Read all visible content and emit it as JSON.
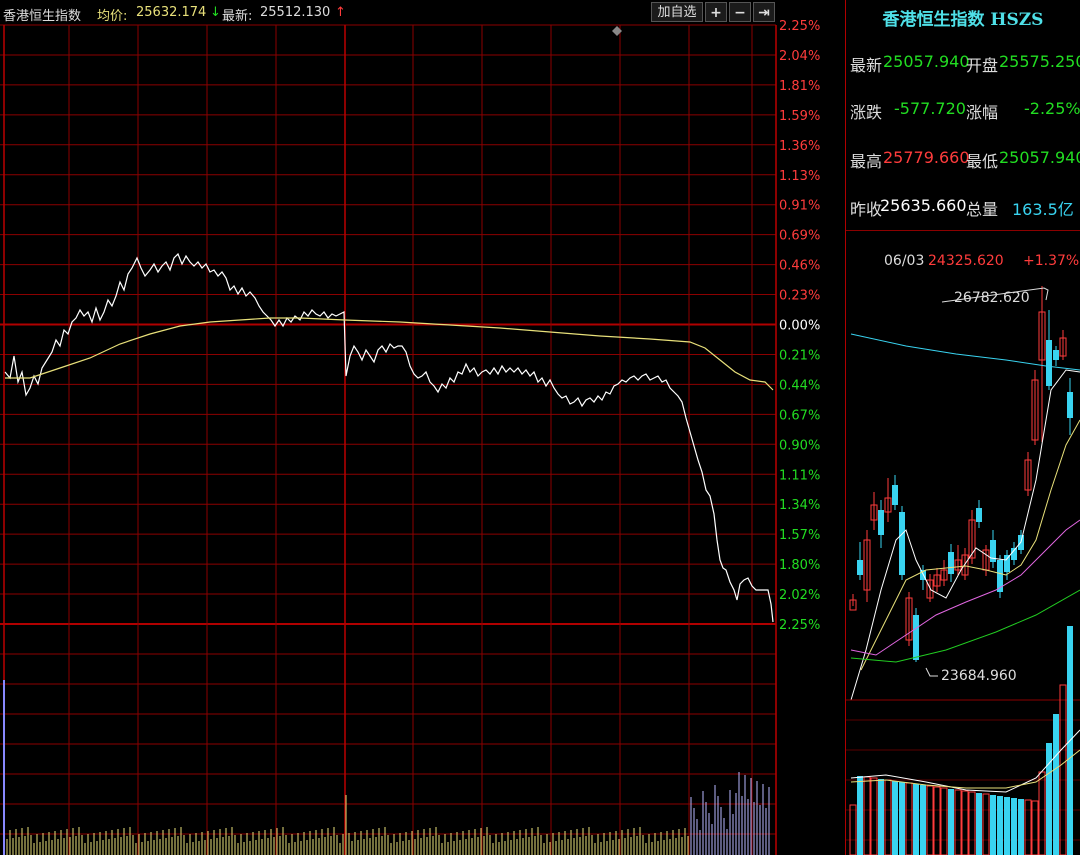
{
  "header": {
    "title": "香港恒生指数",
    "avg_label": "均价:",
    "avg_value": "25632.174",
    "avg_arrow": "↓",
    "latest_label": "最新:",
    "latest_value": "25512.130",
    "latest_arrow": "↑",
    "add_watch_label": "加自选",
    "plus_label": "+",
    "minus_label": "−",
    "close_label": "⇥"
  },
  "colors": {
    "up": "#ff3c3c",
    "down": "#22dd22",
    "grid": "#8b0000",
    "price_line": "#ffffff",
    "avg_line": "#e8e07a",
    "accent": "#4fe0e8"
  },
  "right_axis_labels": [
    {
      "text": "2.25%",
      "dir": "up"
    },
    {
      "text": "2.04%",
      "dir": "up"
    },
    {
      "text": "1.81%",
      "dir": "up"
    },
    {
      "text": "1.59%",
      "dir": "up"
    },
    {
      "text": "1.36%",
      "dir": "up"
    },
    {
      "text": "1.13%",
      "dir": "up"
    },
    {
      "text": "0.91%",
      "dir": "up"
    },
    {
      "text": "0.69%",
      "dir": "up"
    },
    {
      "text": "0.46%",
      "dir": "up"
    },
    {
      "text": "0.23%",
      "dir": "up"
    },
    {
      "text": "0.00%",
      "dir": "flat"
    },
    {
      "text": "0.21%",
      "dir": "down"
    },
    {
      "text": "0.44%",
      "dir": "down"
    },
    {
      "text": "0.67%",
      "dir": "down"
    },
    {
      "text": "0.90%",
      "dir": "down"
    },
    {
      "text": "1.11%",
      "dir": "down"
    },
    {
      "text": "1.34%",
      "dir": "down"
    },
    {
      "text": "1.57%",
      "dir": "down"
    },
    {
      "text": "1.80%",
      "dir": "down"
    },
    {
      "text": "2.02%",
      "dir": "down"
    },
    {
      "text": "2.25%",
      "dir": "down"
    }
  ],
  "side_panel": {
    "title": "香港恒生指数 HSZS",
    "rows": [
      {
        "l1": "最新",
        "v1": "25057.940",
        "c1": "g",
        "l2": "开盘",
        "v2": "25575.250",
        "c2": "g"
      },
      {
        "l1": "涨跌",
        "v1": "-577.720",
        "c1": "g",
        "l2": "涨幅",
        "v2": "-2.25%",
        "c2": "g"
      },
      {
        "l1": "最高",
        "v1": "25779.660",
        "c1": "r",
        "l2": "最低",
        "v2": "25057.940",
        "c2": "g"
      },
      {
        "l1": "昨收",
        "v1": "25635.660",
        "c1": "w",
        "l2": "总量",
        "v2": "163.5亿",
        "c2": "c"
      }
    ],
    "kline_header": {
      "date": "06/03",
      "price": "24325.620",
      "change": "+1.37%"
    },
    "kline_high_label": "26782.620",
    "kline_low_label": "23684.960"
  },
  "icons": {
    "diamond_marker": "diamond-icon"
  }
}
